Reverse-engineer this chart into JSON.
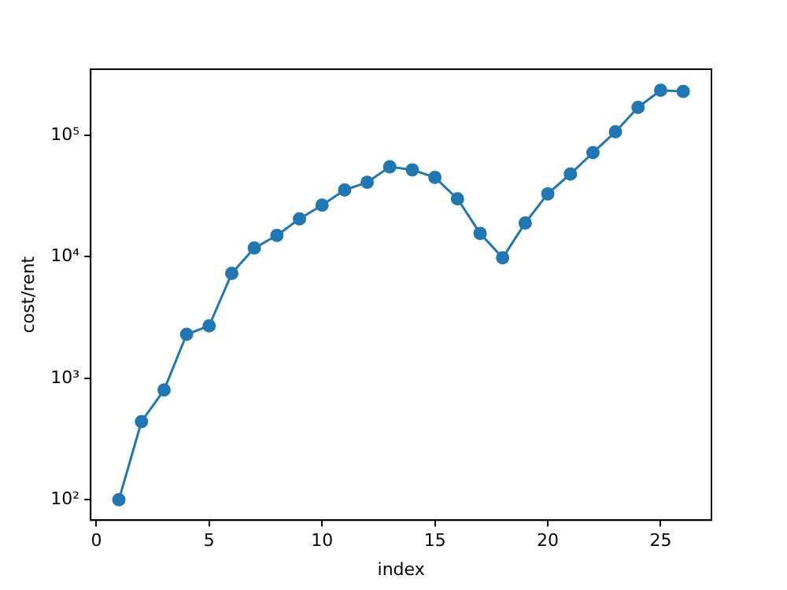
{
  "chart_data": {
    "type": "line",
    "xlabel": "index",
    "ylabel": "cost/rent",
    "x": [
      1,
      2,
      3,
      4,
      5,
      6,
      7,
      8,
      9,
      10,
      11,
      12,
      13,
      14,
      15,
      16,
      17,
      18,
      19,
      20,
      21,
      22,
      23,
      24,
      25,
      26
    ],
    "series": [
      {
        "color": "#1f77b4",
        "values": [
          100,
          440,
          800,
          2300,
          2700,
          7300,
          11800,
          15000,
          20500,
          26600,
          35500,
          41000,
          55000,
          52000,
          45000,
          30000,
          15600,
          9800,
          19000,
          33000,
          48000,
          72000,
          107000,
          170000,
          235000,
          230000
        ]
      }
    ],
    "xlim": [
      -0.25,
      27.25
    ],
    "xticks": [
      0,
      5,
      10,
      15,
      20,
      25
    ],
    "ylim": [
      68,
      350000
    ],
    "yticks": [
      {
        "value": 100,
        "label": "10²"
      },
      {
        "value": 1000,
        "label": "10³"
      },
      {
        "value": 10000,
        "label": "10⁴"
      },
      {
        "value": 100000,
        "label": "10⁵"
      }
    ],
    "log": "y",
    "grid": false,
    "legend": false,
    "marker": "circle",
    "line_style": "solid"
  }
}
